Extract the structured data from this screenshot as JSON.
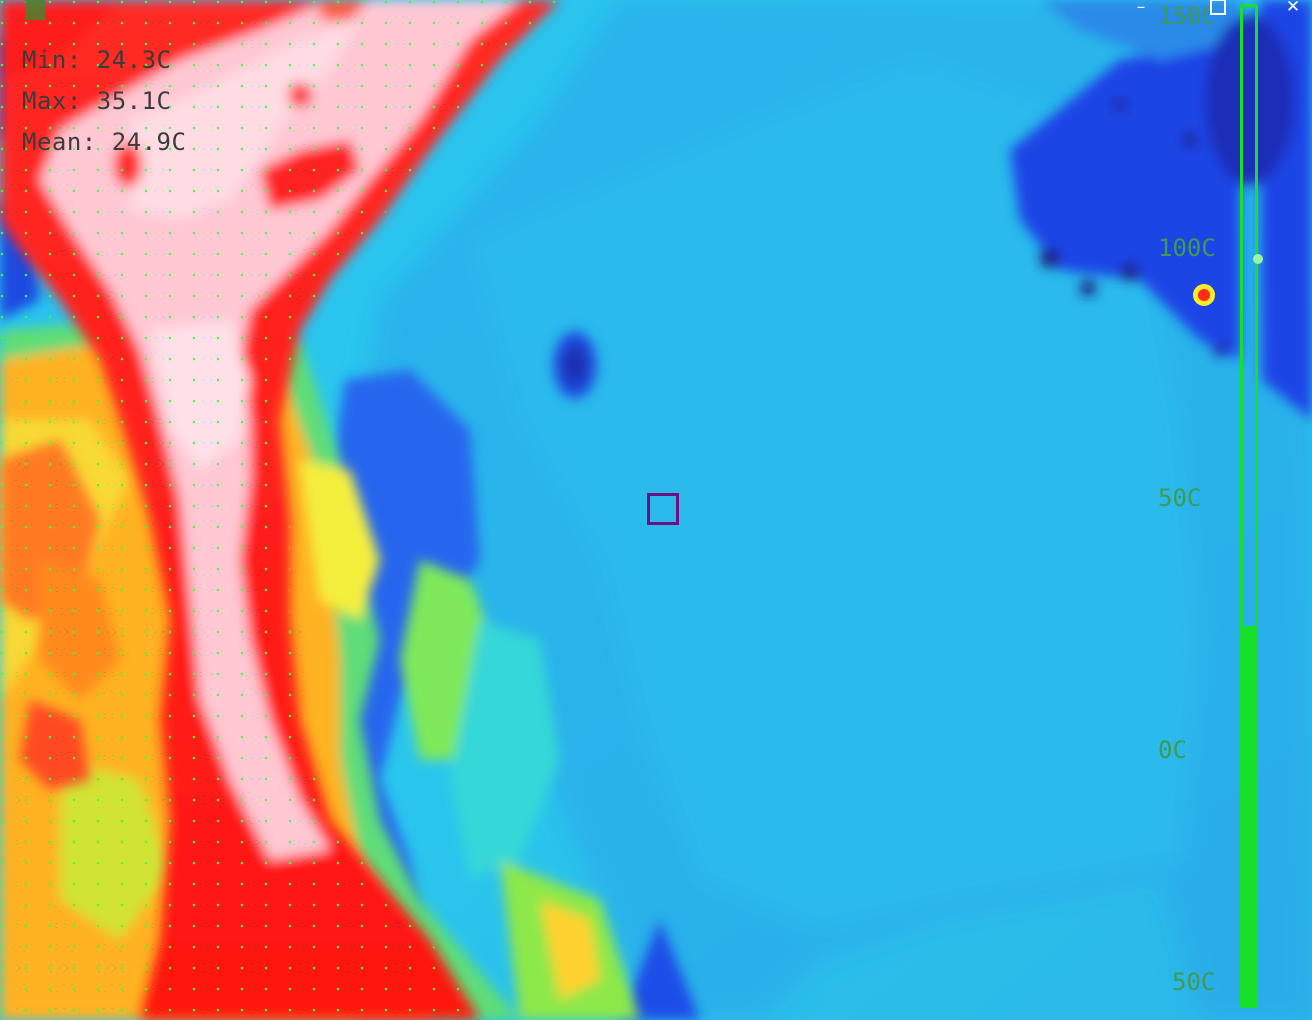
{
  "window": {
    "controls": {
      "minimize": "–",
      "close": "✕"
    }
  },
  "stats": {
    "min_label": "Min:",
    "min_value": "24.3C",
    "max_label": "Max:",
    "max_value": "35.1C",
    "mean_label": "Mean:",
    "mean_value": "24.9C"
  },
  "scale": {
    "labels": [
      "150C",
      "100C",
      "50C",
      "0C",
      "50C"
    ],
    "bar_fill_fraction": 0.38,
    "color": "#18e02a"
  },
  "roi": {
    "color": "#6f0f83"
  },
  "palette": {
    "hot": "#ff1a10",
    "very_hot": "#ffd1d9",
    "warm": "#ff7a12",
    "mid": "#8fe83a",
    "cool": "#22c6f0",
    "cold": "#1f55ef",
    "coldest": "#16138f"
  }
}
